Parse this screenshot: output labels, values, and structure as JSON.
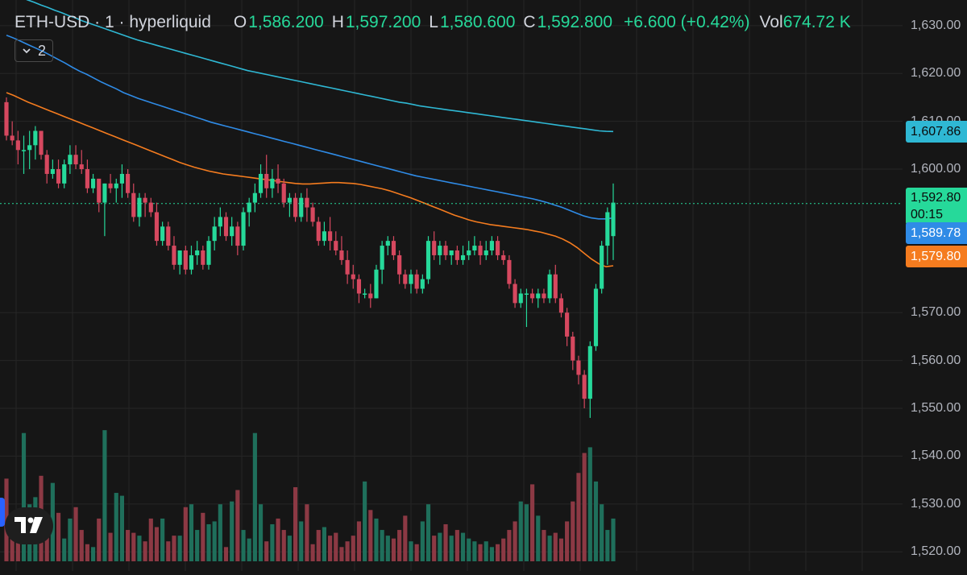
{
  "header": {
    "symbol": "ETH-USD · 1 · hyperliquid",
    "open_key": "O",
    "open": "1,586.200",
    "high_key": "H",
    "high": "1,597.200",
    "low_key": "L",
    "low": "1,580.600",
    "close_key": "C",
    "close": "1,592.800",
    "change": "+6.600 (+0.42%)",
    "vol_key": "Vol",
    "vol": "674.72 K"
  },
  "indicators_toggle": {
    "count": "2",
    "icon": "chevron-down-icon"
  },
  "colors": {
    "up": "#26d99a",
    "down": "#d6485f",
    "vol_up": "#1f6f5b",
    "vol_down": "#8c3944",
    "ma_fast": "#f57c1f",
    "ma_mid": "#2f8be6",
    "ma_slow": "#2fb8d4",
    "last_price_line": "#26d99a",
    "background": "#161616",
    "grid": "#262626"
  },
  "price_axis": {
    "ticks": [
      "1,630.00",
      "1,620.00",
      "1,610.00",
      "1,600.00",
      "1,570.00",
      "1,560.00",
      "1,550.00",
      "1,540.00",
      "1,530.00",
      "1,520.00"
    ],
    "tick_values": [
      1630,
      1620,
      1610,
      1600,
      1570,
      1560,
      1550,
      1540,
      1530,
      1520
    ],
    "labels": {
      "ma_slow": "1,607.86",
      "last_price": "1,592.80",
      "countdown": "00:15",
      "ma_mid": "1,589.78",
      "ma_fast": "1,579.80"
    }
  },
  "chart_data": {
    "type": "candlestick",
    "title": "ETH-USD · 1 · hyperliquid",
    "ylim": [
      1516,
      1633
    ],
    "last_price": 1592.8,
    "candles": [
      [
        1614,
        1615,
        1606,
        1607
      ],
      [
        1607,
        1610,
        1605,
        1606
      ],
      [
        1606,
        1608,
        1601,
        1604
      ],
      [
        1604,
        1607,
        1599,
        1604
      ],
      [
        1604,
        1608,
        1600,
        1605
      ],
      [
        1605,
        1609,
        1602,
        1608
      ],
      [
        1608,
        1608,
        1602,
        1603
      ],
      [
        1603,
        1604,
        1597,
        1599
      ],
      [
        1599,
        1602,
        1598,
        1600
      ],
      [
        1600,
        1602,
        1596,
        1597
      ],
      [
        1597,
        1602,
        1596,
        1601
      ],
      [
        1601,
        1605,
        1599,
        1603
      ],
      [
        1603,
        1605,
        1600,
        1601
      ],
      [
        1601,
        1604,
        1599,
        1600
      ],
      [
        1600,
        1602,
        1595,
        1596
      ],
      [
        1596,
        1599,
        1595,
        1598
      ],
      [
        1598,
        1598,
        1591,
        1593
      ],
      [
        1593,
        1597,
        1586,
        1597
      ],
      [
        1597,
        1599,
        1595,
        1596
      ],
      [
        1596,
        1598,
        1593,
        1597
      ],
      [
        1597,
        1601,
        1594,
        1599
      ],
      [
        1599,
        1600,
        1594,
        1595
      ],
      [
        1595,
        1597,
        1589,
        1590
      ],
      [
        1590,
        1595,
        1588,
        1594
      ],
      [
        1594,
        1595,
        1590,
        1593
      ],
      [
        1593,
        1594,
        1590,
        1591
      ],
      [
        1591,
        1593,
        1584,
        1585
      ],
      [
        1585,
        1589,
        1584,
        1588
      ],
      [
        1588,
        1589,
        1583,
        1584
      ],
      [
        1584,
        1586,
        1579,
        1580
      ],
      [
        1580,
        1583,
        1578,
        1583
      ],
      [
        1583,
        1584,
        1578,
        1579
      ],
      [
        1579,
        1584,
        1578,
        1582
      ],
      [
        1582,
        1585,
        1580,
        1583
      ],
      [
        1583,
        1584,
        1579,
        1580
      ],
      [
        1580,
        1586,
        1579,
        1585
      ],
      [
        1585,
        1590,
        1583,
        1588
      ],
      [
        1588,
        1592,
        1586,
        1590
      ],
      [
        1590,
        1591,
        1585,
        1586
      ],
      [
        1586,
        1590,
        1584,
        1588
      ],
      [
        1588,
        1589,
        1582,
        1584
      ],
      [
        1584,
        1592,
        1583,
        1591
      ],
      [
        1591,
        1594,
        1588,
        1593
      ],
      [
        1593,
        1597,
        1591,
        1595
      ],
      [
        1595,
        1601,
        1594,
        1599
      ],
      [
        1599,
        1603,
        1594,
        1596
      ],
      [
        1596,
        1600,
        1594,
        1598
      ],
      [
        1598,
        1601,
        1595,
        1597
      ],
      [
        1597,
        1598,
        1592,
        1593
      ],
      [
        1593,
        1595,
        1590,
        1594
      ],
      [
        1594,
        1595,
        1589,
        1590
      ],
      [
        1590,
        1595,
        1589,
        1594
      ],
      [
        1594,
        1596,
        1589,
        1592
      ],
      [
        1592,
        1593,
        1588,
        1589
      ],
      [
        1589,
        1590,
        1584,
        1585
      ],
      [
        1585,
        1589,
        1584,
        1587
      ],
      [
        1587,
        1590,
        1583,
        1585
      ],
      [
        1585,
        1587,
        1582,
        1583
      ],
      [
        1583,
        1586,
        1580,
        1581
      ],
      [
        1581,
        1583,
        1576,
        1578
      ],
      [
        1578,
        1580,
        1575,
        1577
      ],
      [
        1577,
        1578,
        1572,
        1574
      ],
      [
        1574,
        1575,
        1573,
        1574
      ],
      [
        1574,
        1576,
        1571,
        1573
      ],
      [
        1573,
        1580,
        1573,
        1579
      ],
      [
        1579,
        1585,
        1576,
        1584
      ],
      [
        1584,
        1586,
        1582,
        1585
      ],
      [
        1585,
        1586,
        1581,
        1582
      ],
      [
        1582,
        1583,
        1576,
        1578
      ],
      [
        1578,
        1579,
        1575,
        1576
      ],
      [
        1576,
        1579,
        1574,
        1578
      ],
      [
        1578,
        1579,
        1574,
        1575
      ],
      [
        1575,
        1578,
        1574,
        1577
      ],
      [
        1577,
        1586,
        1576,
        1585
      ],
      [
        1585,
        1587,
        1581,
        1582
      ],
      [
        1582,
        1585,
        1580,
        1584
      ],
      [
        1584,
        1585,
        1581,
        1582
      ],
      [
        1582,
        1583,
        1580,
        1583
      ],
      [
        1583,
        1584,
        1580,
        1581
      ],
      [
        1581,
        1584,
        1580,
        1582
      ],
      [
        1582,
        1585,
        1581,
        1583
      ],
      [
        1583,
        1586,
        1582,
        1584
      ],
      [
        1584,
        1585,
        1580,
        1582
      ],
      [
        1582,
        1585,
        1581,
        1583
      ],
      [
        1583,
        1586,
        1582,
        1585
      ],
      [
        1585,
        1586,
        1581,
        1582
      ],
      [
        1582,
        1583,
        1580,
        1581
      ],
      [
        1581,
        1582,
        1575,
        1576
      ],
      [
        1576,
        1577,
        1571,
        1572
      ],
      [
        1572,
        1575,
        1571,
        1574
      ],
      [
        1574,
        1575,
        1567,
        1574
      ],
      [
        1574,
        1575,
        1572,
        1573
      ],
      [
        1573,
        1575,
        1571,
        1574
      ],
      [
        1574,
        1575,
        1572,
        1573
      ],
      [
        1573,
        1579,
        1572,
        1578
      ],
      [
        1578,
        1580,
        1572,
        1573
      ],
      [
        1573,
        1574,
        1569,
        1570
      ],
      [
        1570,
        1571,
        1563,
        1565
      ],
      [
        1565,
        1566,
        1558,
        1560
      ],
      [
        1560,
        1561,
        1555,
        1557
      ],
      [
        1557,
        1558,
        1550,
        1552
      ],
      [
        1552,
        1564,
        1548,
        1563
      ],
      [
        1563,
        1576,
        1562,
        1575
      ],
      [
        1575,
        1585,
        1574,
        1584
      ],
      [
        1584,
        1592,
        1580,
        1591
      ],
      [
        1586,
        1597,
        1581,
        1593
      ]
    ],
    "volume": [
      58,
      22,
      30,
      90,
      40,
      45,
      60,
      18,
      55,
      34,
      16,
      30,
      38,
      22,
      12,
      10,
      30,
      92,
      20,
      48,
      46,
      22,
      20,
      18,
      14,
      30,
      24,
      30,
      14,
      18,
      18,
      38,
      40,
      22,
      34,
      26,
      28,
      40,
      10,
      42,
      50,
      22,
      16,
      90,
      40,
      14,
      26,
      30,
      22,
      18,
      52,
      28,
      40,
      12,
      22,
      24,
      18,
      20,
      10,
      14,
      18,
      28,
      56,
      36,
      30,
      22,
      18,
      16,
      22,
      32,
      14,
      12,
      28,
      40,
      18,
      20,
      26,
      18,
      22,
      20,
      16,
      14,
      12,
      14,
      10,
      12,
      16,
      22,
      28,
      42,
      40,
      54,
      32,
      22,
      18,
      20,
      16,
      28,
      42,
      62,
      76,
      80,
      56,
      40,
      22,
      30
    ],
    "moving_averages": [
      {
        "name": "MA slow",
        "end_value": 1607.86,
        "values": [
          1637,
          1636.5,
          1636,
          1635.4,
          1634.9,
          1634.3,
          1633.8,
          1633.2,
          1632.7,
          1632.1,
          1631.6,
          1631,
          1630.5,
          1630,
          1629.5,
          1629,
          1628.5,
          1628,
          1627.5,
          1627,
          1626.6,
          1626.2,
          1625.8,
          1625.4,
          1625,
          1624.6,
          1624.2,
          1623.8,
          1623.4,
          1623,
          1622.6,
          1622.2,
          1621.8,
          1621.4,
          1621,
          1620.6,
          1620.3,
          1620,
          1619.7,
          1619.4,
          1619.1,
          1618.8,
          1618.5,
          1618.2,
          1617.9,
          1617.6,
          1617.3,
          1617,
          1616.7,
          1616.4,
          1616.1,
          1615.8,
          1615.5,
          1615.2,
          1614.9,
          1614.6,
          1614.3,
          1614,
          1613.8,
          1613.5,
          1613.2,
          1613,
          1612.8,
          1612.6,
          1612.4,
          1612.2,
          1612,
          1611.8,
          1611.6,
          1611.4,
          1611.2,
          1611,
          1610.8,
          1610.6,
          1610.4,
          1610.2,
          1610,
          1609.8,
          1609.6,
          1609.4,
          1609.2,
          1609,
          1608.8,
          1608.6,
          1608.4,
          1608.2,
          1608,
          1607.9,
          1607.86
        ]
      },
      {
        "name": "MA mid",
        "end_value": 1589.78,
        "values": [
          1628,
          1627.4,
          1626.7,
          1626,
          1625.3,
          1624.6,
          1623.8,
          1623,
          1622.2,
          1621.3,
          1620.5,
          1619.8,
          1619,
          1618.2,
          1617.5,
          1616.8,
          1616,
          1615.4,
          1614.8,
          1614.3,
          1613.8,
          1613.3,
          1612.8,
          1612.3,
          1611.8,
          1611.3,
          1610.8,
          1610.3,
          1609.8,
          1609.4,
          1609,
          1608.6,
          1608.2,
          1607.8,
          1607.4,
          1607,
          1606.6,
          1606.2,
          1605.8,
          1605.4,
          1605,
          1604.6,
          1604.2,
          1603.8,
          1603.4,
          1603,
          1602.6,
          1602.2,
          1601.8,
          1601.4,
          1601,
          1600.6,
          1600.2,
          1599.8,
          1599.4,
          1599,
          1598.6,
          1598.3,
          1598,
          1597.7,
          1597.4,
          1597.1,
          1596.8,
          1596.5,
          1596.2,
          1595.9,
          1595.6,
          1595.3,
          1595,
          1594.7,
          1594.4,
          1594.1,
          1593.8,
          1593.4,
          1593,
          1592.5,
          1592,
          1591.4,
          1590.8,
          1590.2,
          1589.8,
          1589.6,
          1589.6,
          1589.78
        ]
      },
      {
        "name": "MA fast",
        "end_value": 1579.8,
        "values": [
          1616,
          1615.4,
          1614.7,
          1614,
          1613.4,
          1612.8,
          1612.2,
          1611.6,
          1611,
          1610.4,
          1609.8,
          1609.2,
          1608.6,
          1608,
          1607.4,
          1606.8,
          1606.2,
          1605.6,
          1605,
          1604.4,
          1603.8,
          1603.2,
          1602.6,
          1602,
          1601.4,
          1600.9,
          1600.4,
          1600,
          1599.6,
          1599.3,
          1599,
          1598.8,
          1598.6,
          1598.4,
          1598.2,
          1598,
          1597.8,
          1597.6,
          1597.4,
          1597.2,
          1597,
          1596.9,
          1596.9,
          1597,
          1597.1,
          1597.2,
          1597.2,
          1597.1,
          1597,
          1596.8,
          1596.5,
          1596.2,
          1595.9,
          1595.5,
          1595,
          1594.5,
          1594,
          1593.4,
          1592.8,
          1592.2,
          1591.6,
          1591,
          1590.4,
          1589.9,
          1589.4,
          1589,
          1588.7,
          1588.4,
          1588.2,
          1588,
          1587.8,
          1587.6,
          1587.4,
          1587.1,
          1586.8,
          1586.4,
          1586,
          1585.4,
          1584.6,
          1583.6,
          1582.4,
          1581.2,
          1580.2,
          1579.6,
          1579.8
        ]
      }
    ]
  }
}
